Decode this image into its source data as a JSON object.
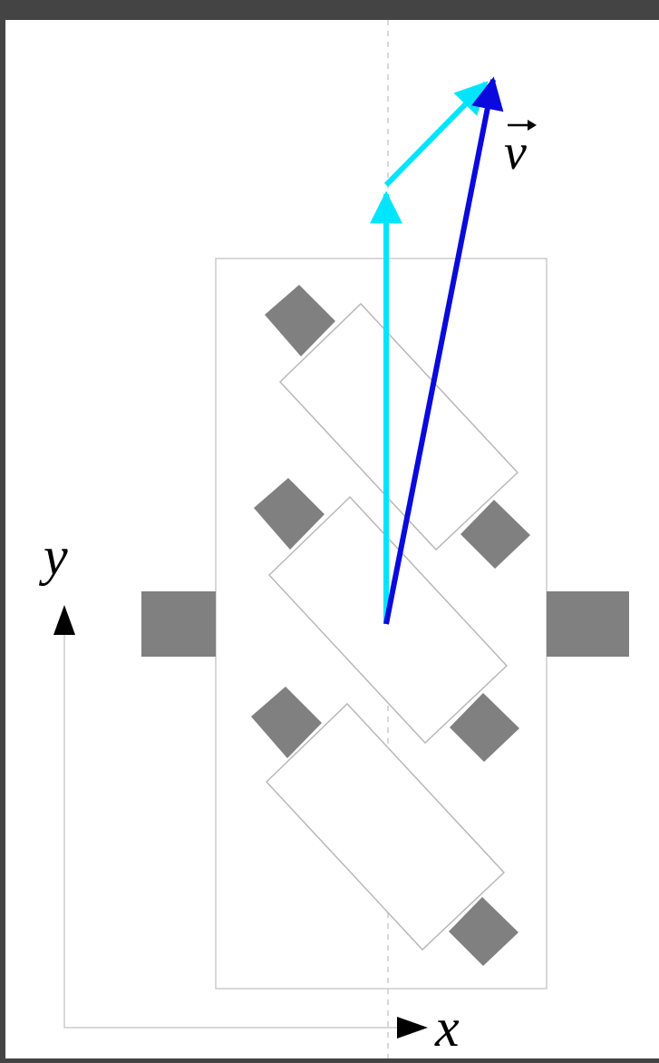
{
  "labels": {
    "velocity": "v",
    "x_axis": "x",
    "y_axis": "y"
  },
  "colors": {
    "background": "#444444",
    "canvas": "#ffffff",
    "body_outline": "#cccccc",
    "wheel": "#808080",
    "roller": "#ffffff",
    "roller_outline": "#b8b8b8",
    "center_line": "#cccccc",
    "velocity": "#0a0adc",
    "velocity_components": "#00e5ff",
    "axis": "#cccccc",
    "arrowhead": "#000000"
  }
}
